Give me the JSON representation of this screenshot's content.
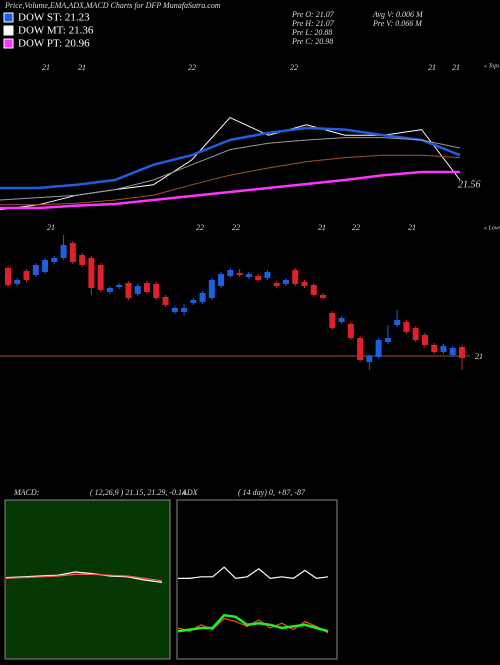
{
  "header": {
    "title": "Price,Volume,EMA,ADX,MACD Charts for DFP MunafaSutra.com"
  },
  "legend": [
    {
      "label": "DOW ST: 21.23",
      "color": "#1e5fe0"
    },
    {
      "label": "DOW MT: 21.36",
      "color": "#ffffff"
    },
    {
      "label": "DOW PT: 20.96",
      "color": "#ff33ff"
    }
  ],
  "stats": [
    "Pre  O: 21.07",
    "Pre  H: 21.07",
    "Pre  L: 20.88",
    "Pre  C: 20.98",
    "Avg V: 0.006  M",
    "Pre  V: 0.066  M"
  ],
  "chart_data": [
    {
      "type": "line",
      "date_labels": [
        "21",
        "21",
        "22",
        "22",
        "21",
        "21"
      ],
      "corner_label": "« Tops",
      "price_label": "21.56",
      "ylim": [
        20.5,
        22.5
      ],
      "series": [
        {
          "color": "#ffffff",
          "values": [
            20.63,
            20.69,
            20.81,
            20.88,
            20.94,
            21.25,
            21.78,
            21.56,
            21.69,
            21.56,
            21.56,
            21.63,
            21.0
          ]
        },
        {
          "color": "#1e5fe0",
          "values": [
            20.9,
            20.9,
            20.94,
            21.0,
            21.19,
            21.31,
            21.5,
            21.59,
            21.65,
            21.63,
            21.56,
            21.5,
            21.31
          ]
        },
        {
          "color": "#9a9a9a",
          "values": [
            20.75,
            20.78,
            20.81,
            20.88,
            21.0,
            21.19,
            21.38,
            21.46,
            21.5,
            21.53,
            21.53,
            21.5,
            21.4
          ]
        },
        {
          "color": "#a0522d",
          "values": [
            20.69,
            20.69,
            20.71,
            20.75,
            20.81,
            20.94,
            21.06,
            21.15,
            21.23,
            21.28,
            21.31,
            21.31,
            21.28
          ]
        },
        {
          "color": "#ff33ff",
          "values": [
            20.65,
            20.65,
            20.68,
            20.7,
            20.75,
            20.8,
            20.85,
            20.9,
            20.95,
            21.0,
            21.06,
            21.1,
            21.1
          ]
        }
      ]
    },
    {
      "type": "candlestick",
      "date_labels": [
        "21",
        "22",
        "22",
        "21",
        "22",
        "21"
      ],
      "corner_label": "« Lows",
      "ylim": [
        20.85,
        22.25
      ],
      "ref_line": 21,
      "up_color": "#1e5fe0",
      "down_color": "#e0202a",
      "ref_color": "#a0522d",
      "ohlc": [
        [
          21.88,
          21.9,
          21.69,
          21.71
        ],
        [
          21.72,
          21.78,
          21.7,
          21.76
        ],
        [
          21.85,
          21.87,
          21.74,
          21.76
        ],
        [
          21.81,
          21.93,
          21.79,
          21.91
        ],
        [
          21.84,
          21.98,
          21.82,
          21.96
        ],
        [
          21.94,
          22.0,
          21.92,
          21.98
        ],
        [
          21.98,
          22.21,
          21.96,
          22.11
        ],
        [
          22.13,
          22.15,
          21.92,
          21.94
        ],
        [
          22.01,
          22.03,
          21.89,
          21.91
        ],
        [
          21.98,
          22.0,
          21.61,
          21.68
        ],
        [
          21.91,
          21.93,
          21.64,
          21.66
        ],
        [
          21.64,
          21.7,
          21.62,
          21.68
        ],
        [
          21.69,
          21.73,
          21.67,
          21.71
        ],
        [
          21.73,
          21.75,
          21.56,
          21.58
        ],
        [
          21.62,
          21.72,
          21.6,
          21.7
        ],
        [
          21.73,
          21.75,
          21.62,
          21.64
        ],
        [
          21.72,
          21.74,
          21.56,
          21.58
        ],
        [
          21.59,
          21.61,
          21.49,
          21.51
        ],
        [
          21.44,
          21.5,
          21.42,
          21.48
        ],
        [
          21.44,
          21.52,
          21.4,
          21.48
        ],
        [
          21.53,
          21.58,
          21.51,
          21.56
        ],
        [
          21.54,
          21.65,
          21.52,
          21.63
        ],
        [
          21.58,
          21.78,
          21.56,
          21.76
        ],
        [
          21.7,
          21.84,
          21.68,
          21.82
        ],
        [
          21.8,
          21.88,
          21.78,
          21.86
        ],
        [
          21.83,
          21.87,
          21.79,
          21.81
        ],
        [
          21.79,
          21.84,
          21.77,
          21.82
        ],
        [
          21.8,
          21.82,
          21.74,
          21.76
        ],
        [
          21.78,
          21.86,
          21.76,
          21.84
        ],
        [
          21.73,
          21.75,
          21.68,
          21.7
        ],
        [
          21.72,
          21.78,
          21.7,
          21.76
        ],
        [
          21.86,
          21.88,
          21.7,
          21.72
        ],
        [
          21.74,
          21.76,
          21.68,
          21.7
        ],
        [
          21.71,
          21.73,
          21.59,
          21.61
        ],
        [
          21.61,
          21.63,
          21.56,
          21.58
        ],
        [
          21.43,
          21.45,
          21.26,
          21.28
        ],
        [
          21.34,
          21.4,
          21.32,
          21.38
        ],
        [
          21.32,
          21.34,
          21.16,
          21.18
        ],
        [
          21.18,
          21.2,
          20.94,
          20.96
        ],
        [
          20.94,
          21.02,
          20.86,
          21.0
        ],
        [
          20.99,
          21.18,
          20.97,
          21.16
        ],
        [
          21.14,
          21.31,
          21.12,
          21.18
        ],
        [
          21.31,
          21.46,
          21.29,
          21.36
        ],
        [
          21.34,
          21.36,
          21.22,
          21.24
        ],
        [
          21.28,
          21.3,
          21.14,
          21.16
        ],
        [
          21.21,
          21.23,
          21.09,
          21.11
        ],
        [
          21.11,
          21.13,
          21.02,
          21.04
        ],
        [
          21.04,
          21.12,
          21.02,
          21.1
        ],
        [
          21.01,
          21.1,
          20.99,
          21.08
        ],
        [
          21.09,
          21.11,
          20.86,
          20.98
        ]
      ]
    },
    {
      "type": "line",
      "title": "MACD:",
      "params": "( 12,26,9 ) 21.15,  21.29,  -0.14",
      "background": "#063806",
      "ylim": [
        -1,
        1
      ],
      "series": [
        {
          "color": "#ffffff",
          "values": [
            0.03,
            0.04,
            0.05,
            0.06,
            0.1,
            0.08,
            0.05,
            0.04,
            0.0,
            -0.03
          ]
        },
        {
          "color": "#ff5555",
          "values": [
            0.02,
            0.03,
            0.04,
            0.05,
            0.07,
            0.07,
            0.06,
            0.05,
            0.02,
            -0.01
          ]
        }
      ]
    },
    {
      "type": "line",
      "title": "ADX",
      "params": "( 14  day) 0,  +87,  -87",
      "background": "#000000",
      "ylim": [
        0,
        100
      ],
      "series": [
        {
          "color": "#ffffff",
          "values": [
            51,
            51,
            52,
            52,
            58,
            51,
            52,
            57,
            51,
            52,
            51,
            56,
            51,
            52
          ]
        },
        {
          "color": "#ff4422",
          "values": [
            20,
            18,
            22,
            19,
            26,
            24,
            21,
            25,
            20,
            23,
            19,
            24,
            21,
            17
          ]
        },
        {
          "color": "#22ee22",
          "values": [
            18,
            19,
            20,
            20,
            28,
            27,
            22,
            23,
            22,
            20,
            21,
            22,
            20,
            18
          ]
        }
      ]
    }
  ]
}
